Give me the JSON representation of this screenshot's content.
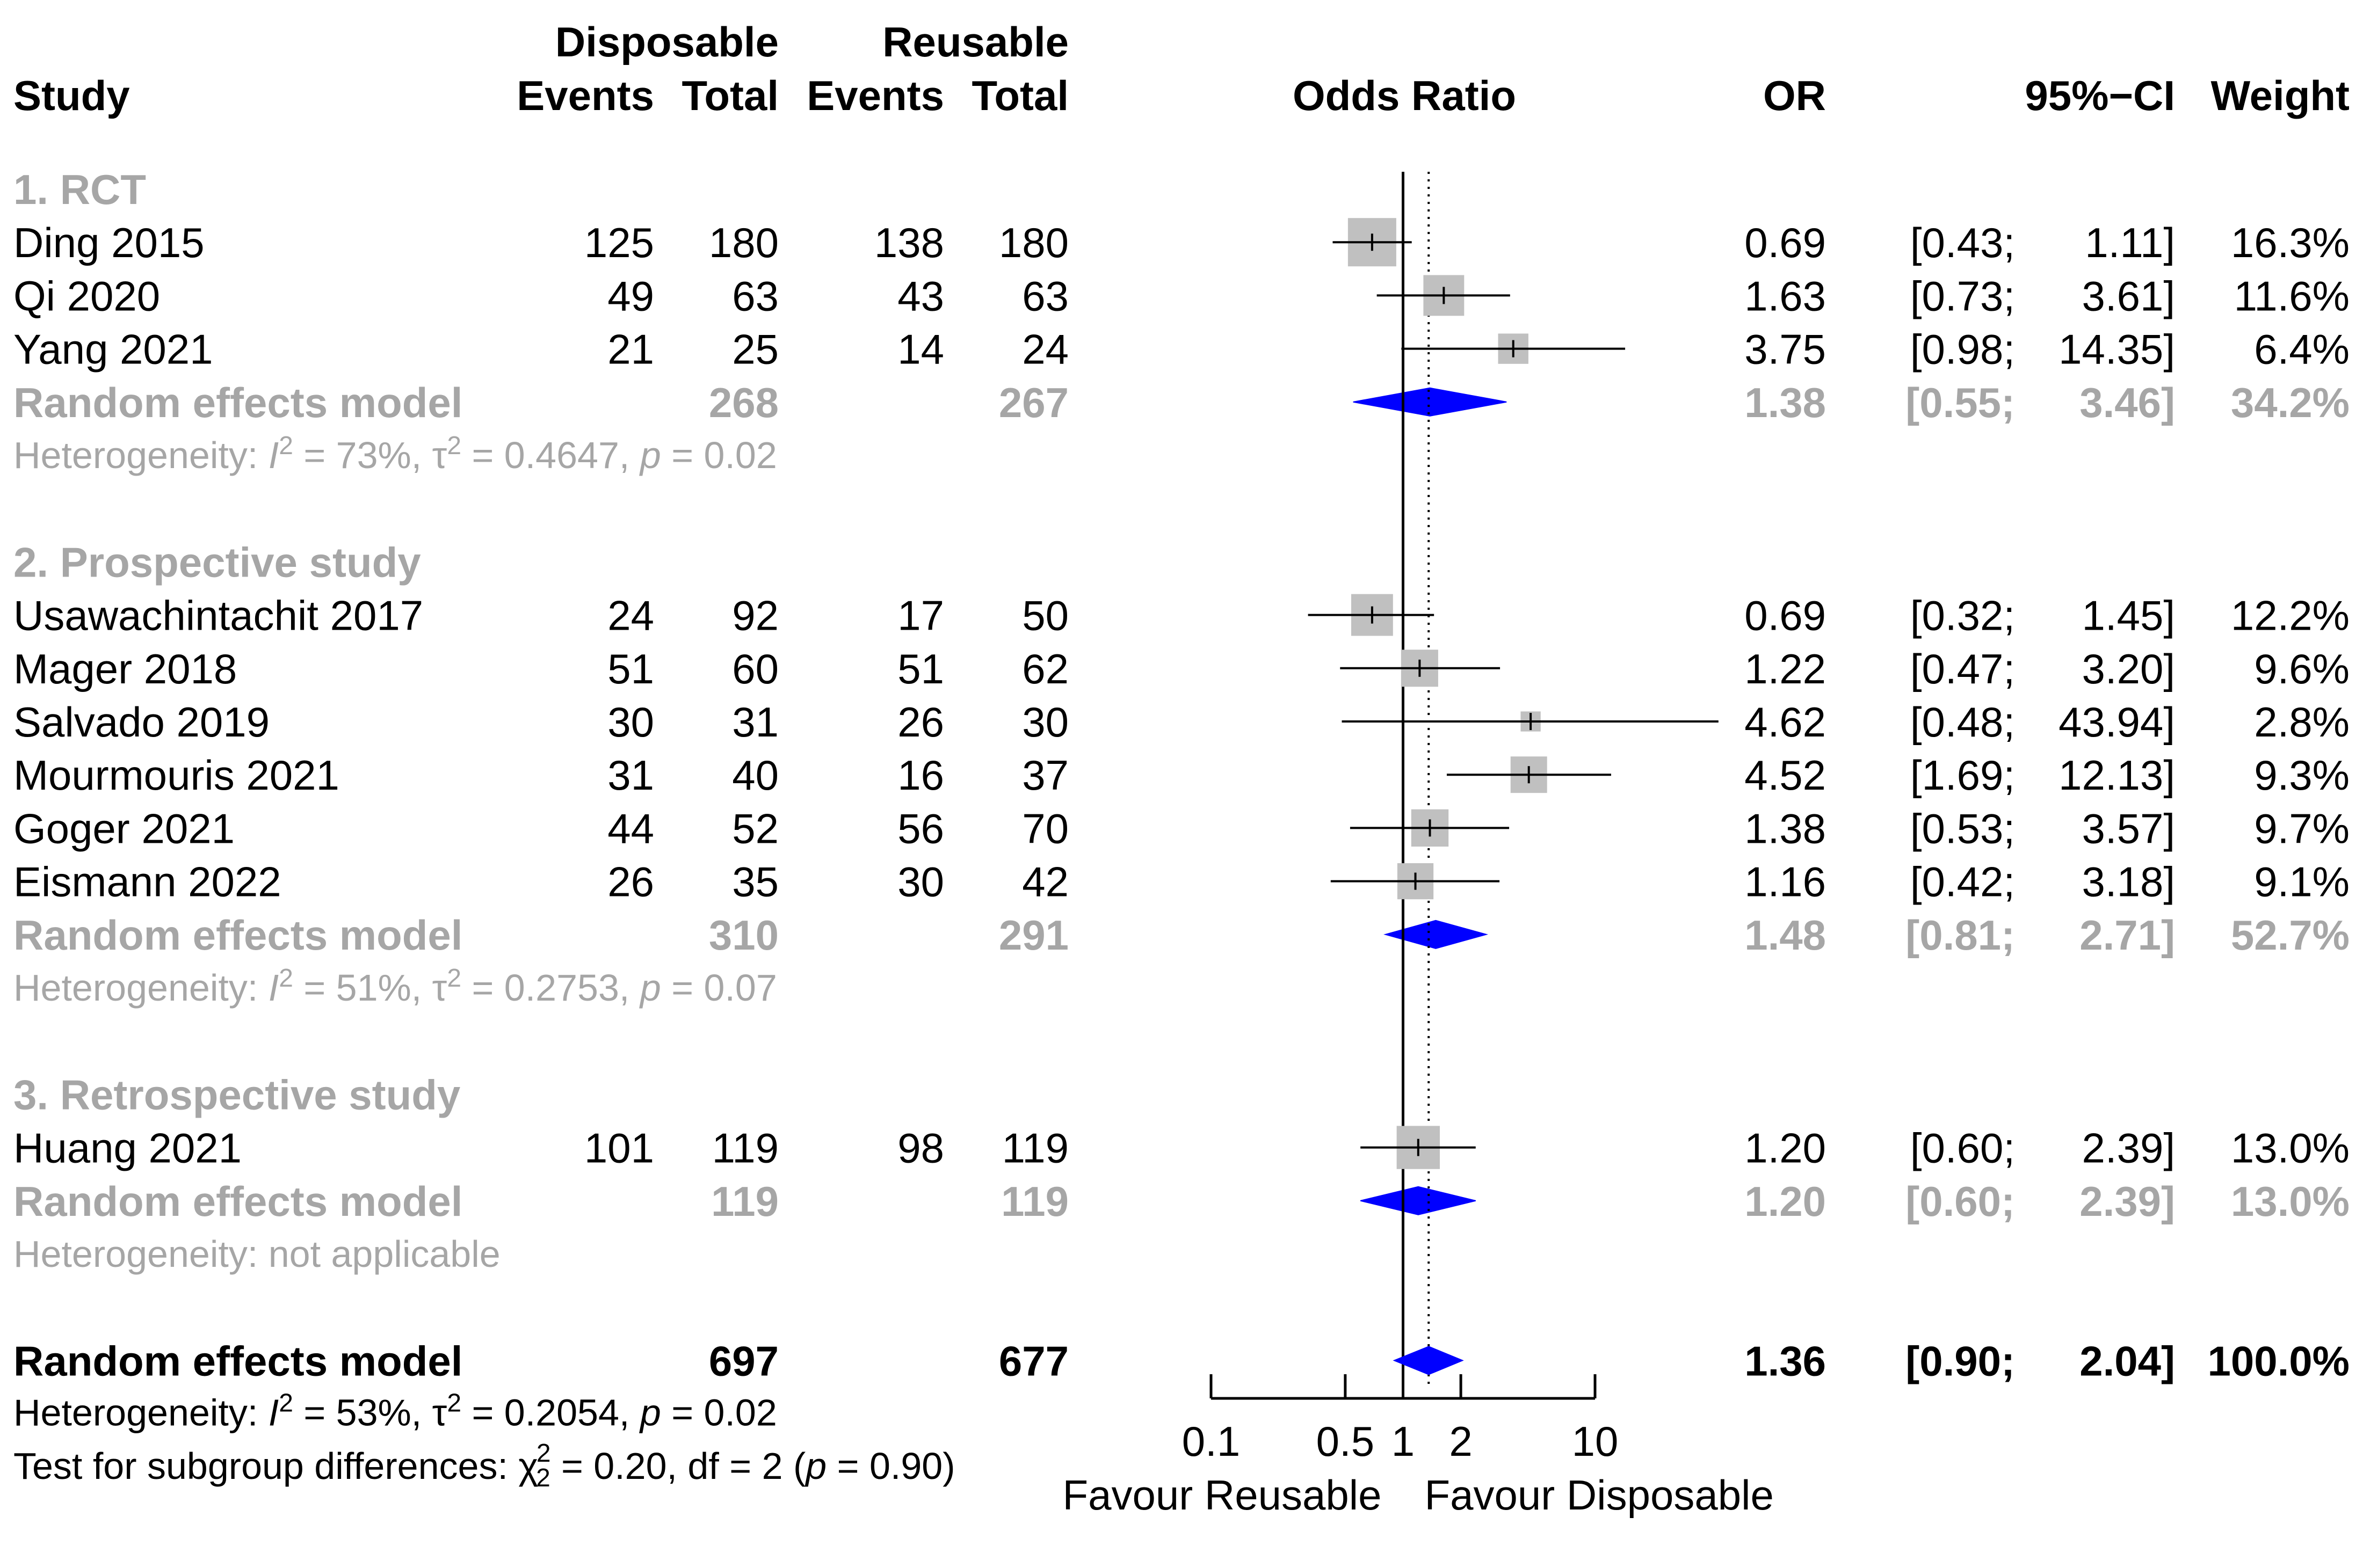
{
  "chart_data": {
    "type": "forest",
    "title": "",
    "headers": {
      "study": "Study",
      "disposable": "Disposable",
      "reusable": "Reusable",
      "events": "Events",
      "total": "Total",
      "odds_ratio": "Odds Ratio",
      "or": "OR",
      "ci": "95%−CI",
      "weight": "Weight"
    },
    "axis": {
      "scale": "log",
      "range": [
        0.1,
        10
      ],
      "ticks": [
        0.1,
        0.5,
        1,
        2,
        10
      ],
      "tick_labels": [
        "0.1",
        "0.5",
        "1",
        "2",
        "10"
      ],
      "null_line": 1,
      "overall_line": 1.36,
      "left_label": "Favour Reusable",
      "right_label": "Favour Disposable"
    },
    "groups": [
      {
        "name": "1. RCT",
        "studies": [
          {
            "study": "Ding 2015",
            "d_events": "125",
            "d_total": "180",
            "r_events": "138",
            "r_total": "180",
            "or": 0.69,
            "lo": 0.43,
            "hi": 1.11,
            "or_text": "0.69",
            "lo_text": "[0.43;",
            "hi_text": "1.11]",
            "weight": "16.3%",
            "w": 16.3
          },
          {
            "study": "Qi 2020",
            "d_events": "49",
            "d_total": "63",
            "r_events": "43",
            "r_total": "63",
            "or": 1.63,
            "lo": 0.73,
            "hi": 3.61,
            "or_text": "1.63",
            "lo_text": "[0.73;",
            "hi_text": "3.61]",
            "weight": "11.6%",
            "w": 11.6
          },
          {
            "study": "Yang 2021",
            "d_events": "21",
            "d_total": "25",
            "r_events": "14",
            "r_total": "24",
            "or": 3.75,
            "lo": 0.98,
            "hi": 14.35,
            "or_text": "3.75",
            "lo_text": "[0.98;",
            "hi_text": "14.35]",
            "weight": "6.4%",
            "w": 6.4
          }
        ],
        "model": {
          "label": "Random effects model",
          "d_total": "268",
          "r_total": "267",
          "or": 1.38,
          "lo": 0.55,
          "hi": 3.46,
          "or_text": "1.38",
          "lo_text": "[0.55;",
          "hi_text": "3.46]",
          "weight": "34.2%"
        },
        "het": {
          "prefix": "Heterogeneity: ",
          "i": "I",
          "i_sup": "2",
          "i_val": " = 73%, τ",
          "t_sup": "2",
          "t_val": " = 0.4647, ",
          "p": "p",
          "p_val": " = 0.02"
        }
      },
      {
        "name": "2. Prospective study",
        "studies": [
          {
            "study": "Usawachintachit 2017",
            "d_events": "24",
            "d_total": "92",
            "r_events": "17",
            "r_total": "50",
            "or": 0.69,
            "lo": 0.32,
            "hi": 1.45,
            "or_text": "0.69",
            "lo_text": "[0.32;",
            "hi_text": "1.45]",
            "weight": "12.2%",
            "w": 12.2
          },
          {
            "study": "Mager 2018",
            "d_events": "51",
            "d_total": "60",
            "r_events": "51",
            "r_total": "62",
            "or": 1.22,
            "lo": 0.47,
            "hi": 3.2,
            "or_text": "1.22",
            "lo_text": "[0.47;",
            "hi_text": "3.20]",
            "weight": "9.6%",
            "w": 9.6
          },
          {
            "study": "Salvado 2019",
            "d_events": "30",
            "d_total": "31",
            "r_events": "26",
            "r_total": "30",
            "or": 4.62,
            "lo": 0.48,
            "hi": 43.94,
            "or_text": "4.62",
            "lo_text": "[0.48;",
            "hi_text": "43.94]",
            "weight": "2.8%",
            "w": 2.8
          },
          {
            "study": "Mourmouris 2021",
            "d_events": "31",
            "d_total": "40",
            "r_events": "16",
            "r_total": "37",
            "or": 4.52,
            "lo": 1.69,
            "hi": 12.13,
            "or_text": "4.52",
            "lo_text": "[1.69;",
            "hi_text": "12.13]",
            "weight": "9.3%",
            "w": 9.3
          },
          {
            "study": "Goger 2021",
            "d_events": "44",
            "d_total": "52",
            "r_events": "56",
            "r_total": "70",
            "or": 1.38,
            "lo": 0.53,
            "hi": 3.57,
            "or_text": "1.38",
            "lo_text": "[0.53;",
            "hi_text": "3.57]",
            "weight": "9.7%",
            "w": 9.7
          },
          {
            "study": "Eismann 2022",
            "d_events": "26",
            "d_total": "35",
            "r_events": "30",
            "r_total": "42",
            "or": 1.16,
            "lo": 0.42,
            "hi": 3.18,
            "or_text": "1.16",
            "lo_text": "[0.42;",
            "hi_text": "3.18]",
            "weight": "9.1%",
            "w": 9.1
          }
        ],
        "model": {
          "label": "Random effects model",
          "d_total": "310",
          "r_total": "291",
          "or": 1.48,
          "lo": 0.81,
          "hi": 2.71,
          "or_text": "1.48",
          "lo_text": "[0.81;",
          "hi_text": "2.71]",
          "weight": "52.7%"
        },
        "het": {
          "prefix": "Heterogeneity: ",
          "i": "I",
          "i_sup": "2",
          "i_val": " = 51%, τ",
          "t_sup": "2",
          "t_val": " = 0.2753, ",
          "p": "p",
          "p_val": " = 0.07"
        }
      },
      {
        "name": "3. Retrospective study",
        "studies": [
          {
            "study": "Huang 2021",
            "d_events": "101",
            "d_total": "119",
            "r_events": "98",
            "r_total": "119",
            "or": 1.2,
            "lo": 0.6,
            "hi": 2.39,
            "or_text": "1.20",
            "lo_text": "[0.60;",
            "hi_text": "2.39]",
            "weight": "13.0%",
            "w": 13.0
          }
        ],
        "model": {
          "label": "Random effects model",
          "d_total": "119",
          "r_total": "119",
          "or": 1.2,
          "lo": 0.6,
          "hi": 2.39,
          "or_text": "1.20",
          "lo_text": "[0.60;",
          "hi_text": "2.39]",
          "weight": "13.0%"
        },
        "het": {
          "plain": "Heterogeneity: not applicable"
        }
      }
    ],
    "overall": {
      "label": "Random effects model",
      "d_total": "697",
      "r_total": "677",
      "or": 1.36,
      "lo": 0.9,
      "hi": 2.04,
      "or_text": "1.36",
      "lo_text": "[0.90;",
      "hi_text": "2.04]",
      "weight": "100.0%",
      "het": {
        "prefix": "Heterogeneity: ",
        "i": "I",
        "i_sup": "2",
        "i_val": " = 53%, τ",
        "t_sup": "2",
        "t_val": " = 0.2054, ",
        "p": "p",
        "p_val": " = 0.02"
      },
      "subgroup": {
        "prefix": "Test for subgroup differences: χ",
        "sub": "2",
        "sup": "2",
        "mid": " = 0.20, df = 2 (",
        "p": "p",
        "tail": " = 0.90)"
      }
    },
    "colors": {
      "box": "#c0c0c0",
      "diamond": "#0000ff",
      "subgroup_text": "#a6a6a6",
      "text": "#000000"
    }
  }
}
